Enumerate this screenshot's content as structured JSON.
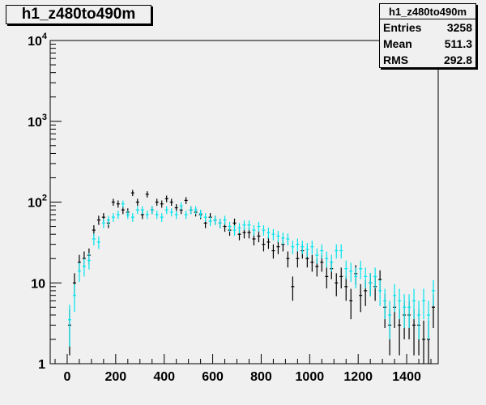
{
  "title": "h1_z480to490m",
  "stats": {
    "name": "h1_z480to490m",
    "rows": [
      {
        "label": "Entries",
        "value": "3258"
      },
      {
        "label": "Mean",
        "value": "511.3"
      },
      {
        "label": "RMS",
        "value": "292.8"
      }
    ]
  },
  "colors": {
    "background": "#f0f0f0",
    "frame": "#000000",
    "series_black": "#000000",
    "series_cyan": "#00e5ee"
  },
  "chart_data": {
    "type": "scatter",
    "title": "h1_z480to490m",
    "xlabel": "",
    "ylabel": "",
    "xlim": [
      -70,
      1530
    ],
    "ylim": [
      1,
      10000
    ],
    "yscale": "log",
    "grid": false,
    "x_ticks": [
      0,
      200,
      400,
      600,
      800,
      1000,
      1200,
      1400
    ],
    "y_ticks": [
      {
        "value": 1,
        "label": "1"
      },
      {
        "value": 10,
        "label": "10"
      },
      {
        "value": 100,
        "label": "10",
        "exp": "2"
      },
      {
        "value": 1000,
        "label": "10",
        "exp": "3"
      },
      {
        "value": 10000,
        "label": "10",
        "exp": "4"
      }
    ],
    "bin_halfwidth": 10,
    "series": [
      {
        "color": "#000000",
        "points": [
          [
            10,
            3
          ],
          [
            30,
            10
          ],
          [
            50,
            18
          ],
          [
            70,
            20
          ],
          [
            90,
            22
          ],
          [
            110,
            45
          ],
          [
            130,
            60
          ],
          [
            150,
            65
          ],
          [
            170,
            55
          ],
          [
            190,
            100
          ],
          [
            210,
            95
          ],
          [
            230,
            80
          ],
          [
            250,
            75
          ],
          [
            270,
            130
          ],
          [
            290,
            100
          ],
          [
            310,
            70
          ],
          [
            330,
            125
          ],
          [
            350,
            80
          ],
          [
            370,
            100
          ],
          [
            390,
            95
          ],
          [
            410,
            110
          ],
          [
            430,
            100
          ],
          [
            450,
            85
          ],
          [
            470,
            80
          ],
          [
            490,
            105
          ],
          [
            510,
            80
          ],
          [
            530,
            75
          ],
          [
            550,
            70
          ],
          [
            570,
            55
          ],
          [
            590,
            65
          ],
          [
            610,
            60
          ],
          [
            630,
            55
          ],
          [
            650,
            50
          ],
          [
            670,
            45
          ],
          [
            690,
            55
          ],
          [
            710,
            40
          ],
          [
            730,
            42
          ],
          [
            750,
            42
          ],
          [
            770,
            35
          ],
          [
            790,
            38
          ],
          [
            810,
            30
          ],
          [
            830,
            32
          ],
          [
            850,
            25
          ],
          [
            870,
            28
          ],
          [
            890,
            30
          ],
          [
            910,
            20
          ],
          [
            930,
            9
          ],
          [
            950,
            20
          ],
          [
            970,
            25
          ],
          [
            990,
            20
          ],
          [
            1010,
            18
          ],
          [
            1030,
            16
          ],
          [
            1050,
            18
          ],
          [
            1070,
            12
          ],
          [
            1090,
            15
          ],
          [
            1110,
            10
          ],
          [
            1130,
            12
          ],
          [
            1150,
            9
          ],
          [
            1170,
            6
          ],
          [
            1190,
            13
          ],
          [
            1210,
            7
          ],
          [
            1230,
            8
          ],
          [
            1250,
            10
          ],
          [
            1270,
            9
          ],
          [
            1290,
            11
          ],
          [
            1310,
            5
          ],
          [
            1330,
            3
          ],
          [
            1350,
            5
          ],
          [
            1370,
            3
          ],
          [
            1390,
            4
          ],
          [
            1410,
            4
          ],
          [
            1430,
            3
          ],
          [
            1450,
            3
          ],
          [
            1470,
            2
          ],
          [
            1490,
            2
          ],
          [
            1510,
            5
          ]
        ]
      },
      {
        "color": "#00e5ee",
        "points": [
          [
            10,
            3.5
          ],
          [
            30,
            7
          ],
          [
            50,
            14
          ],
          [
            70,
            16
          ],
          [
            90,
            19
          ],
          [
            110,
            35
          ],
          [
            130,
            32
          ],
          [
            150,
            55
          ],
          [
            170,
            60
          ],
          [
            190,
            65
          ],
          [
            210,
            70
          ],
          [
            230,
            95
          ],
          [
            250,
            70
          ],
          [
            270,
            65
          ],
          [
            290,
            80
          ],
          [
            310,
            80
          ],
          [
            330,
            70
          ],
          [
            350,
            80
          ],
          [
            370,
            70
          ],
          [
            390,
            65
          ],
          [
            410,
            80
          ],
          [
            430,
            75
          ],
          [
            450,
            70
          ],
          [
            470,
            90
          ],
          [
            490,
            70
          ],
          [
            510,
            80
          ],
          [
            530,
            80
          ],
          [
            550,
            72
          ],
          [
            570,
            65
          ],
          [
            590,
            58
          ],
          [
            610,
            60
          ],
          [
            630,
            55
          ],
          [
            650,
            60
          ],
          [
            670,
            50
          ],
          [
            690,
            45
          ],
          [
            710,
            48
          ],
          [
            730,
            52
          ],
          [
            750,
            52
          ],
          [
            770,
            45
          ],
          [
            790,
            50
          ],
          [
            810,
            45
          ],
          [
            830,
            42
          ],
          [
            850,
            40
          ],
          [
            870,
            38
          ],
          [
            890,
            36
          ],
          [
            910,
            35
          ],
          [
            930,
            28
          ],
          [
            950,
            30
          ],
          [
            970,
            28
          ],
          [
            990,
            26
          ],
          [
            1010,
            28
          ],
          [
            1030,
            22
          ],
          [
            1050,
            25
          ],
          [
            1070,
            20
          ],
          [
            1090,
            18
          ],
          [
            1110,
            25
          ],
          [
            1130,
            25
          ],
          [
            1150,
            15
          ],
          [
            1170,
            14
          ],
          [
            1190,
            12
          ],
          [
            1210,
            15
          ],
          [
            1230,
            12
          ],
          [
            1250,
            10
          ],
          [
            1270,
            12
          ],
          [
            1290,
            8
          ],
          [
            1310,
            6
          ],
          [
            1330,
            4
          ],
          [
            1350,
            7
          ],
          [
            1370,
            6
          ],
          [
            1390,
            5
          ],
          [
            1410,
            5
          ],
          [
            1430,
            6
          ],
          [
            1450,
            4
          ],
          [
            1470,
            6
          ],
          [
            1490,
            4
          ],
          [
            1510,
            8
          ]
        ]
      }
    ]
  }
}
